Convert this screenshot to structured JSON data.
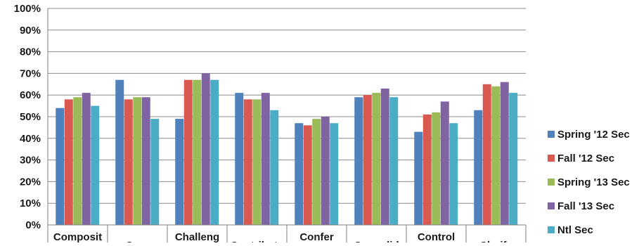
{
  "chart_data": {
    "type": "bar",
    "title": "",
    "xlabel": "",
    "ylabel": "",
    "ylim": [
      0,
      100
    ],
    "y_ticks": [
      "0%",
      "10%",
      "20%",
      "30%",
      "40%",
      "50%",
      "60%",
      "70%",
      "80%",
      "90%",
      "100%"
    ],
    "grid": true,
    "legend_position": "right",
    "categories": [
      "Composit",
      "Core",
      "Challeng",
      "Contribute",
      "Confer",
      "Consolid",
      "Control",
      "Clarify"
    ],
    "series": [
      {
        "name": "Spring '12 Sec",
        "color": "#4f81bd",
        "values": [
          54,
          67,
          49,
          61,
          47,
          59,
          43,
          53
        ]
      },
      {
        "name": "Fall '12 Sec",
        "color": "#d9584f",
        "values": [
          58,
          58,
          67,
          58,
          46,
          60,
          51,
          65
        ]
      },
      {
        "name": "Spring '13 Sec",
        "color": "#9bbb59",
        "values": [
          59,
          59,
          67,
          58,
          49,
          61,
          52,
          64
        ]
      },
      {
        "name": "Fall '13 Sec",
        "color": "#8064a2",
        "values": [
          61,
          59,
          70,
          61,
          50,
          63,
          57,
          66
        ]
      },
      {
        "name": "Ntl Sec",
        "color": "#4bacc6",
        "values": [
          55,
          49,
          67,
          53,
          47,
          59,
          47,
          61
        ]
      }
    ]
  }
}
